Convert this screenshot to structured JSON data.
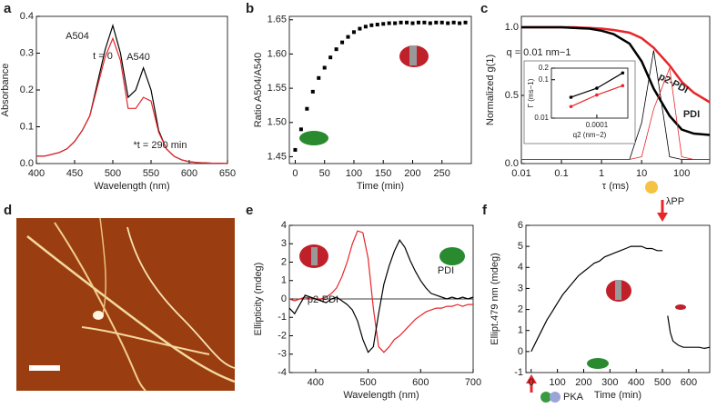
{
  "chart_data": [
    {
      "type": "line",
      "label": "a",
      "x_label": "Wavelength (nm)",
      "y_label": "Absorbance",
      "x": [
        400,
        410,
        420,
        430,
        440,
        450,
        460,
        470,
        480,
        490,
        500,
        510,
        520,
        530,
        540,
        550,
        560,
        570,
        580,
        590,
        600,
        610,
        620,
        630,
        640,
        650
      ],
      "series": [
        {
          "name": "t = 0",
          "color": "#000000",
          "values": [
            0.02,
            0.02,
            0.025,
            0.03,
            0.04,
            0.06,
            0.09,
            0.13,
            0.22,
            0.31,
            0.375,
            0.3,
            0.18,
            0.2,
            0.26,
            0.2,
            0.09,
            0.04,
            0.02,
            0.01,
            0.005,
            0.003,
            0.002,
            0.001,
            0.001,
            0
          ]
        },
        {
          "name": "*t = 290 min",
          "color": "#e8262a",
          "values": [
            0.02,
            0.02,
            0.025,
            0.03,
            0.04,
            0.06,
            0.09,
            0.13,
            0.21,
            0.29,
            0.34,
            0.28,
            0.15,
            0.15,
            0.18,
            0.17,
            0.085,
            0.04,
            0.02,
            0.01,
            0.005,
            0.003,
            0.002,
            0.001,
            0.001,
            0
          ]
        }
      ],
      "annotations": [
        {
          "text": "A504",
          "color": "#e8262a"
        },
        {
          "text": "A540",
          "color": "#e8262a"
        }
      ],
      "xlim": [
        400,
        650
      ],
      "xticks": [
        400,
        450,
        500,
        550,
        600,
        650
      ],
      "ylim": [
        0,
        0.4
      ],
      "yticks": [
        {
          "value": 0,
          "label": "0.0"
        },
        0.1,
        0.2,
        0.3,
        0.4
      ]
    },
    {
      "type": "scatter",
      "label": "b",
      "x_label": "Time (min)",
      "y_label": "Ratio A504/A540",
      "x": [
        0,
        10,
        20,
        30,
        40,
        50,
        60,
        70,
        80,
        90,
        100,
        110,
        120,
        130,
        140,
        150,
        160,
        170,
        180,
        190,
        200,
        210,
        220,
        230,
        240,
        250,
        260,
        270,
        280,
        290
      ],
      "series": [
        {
          "color": "#000000",
          "values": [
            1.46,
            1.49,
            1.52,
            1.545,
            1.565,
            1.58,
            1.595,
            1.607,
            1.617,
            1.625,
            1.632,
            1.637,
            1.64,
            1.642,
            1.643,
            1.644,
            1.645,
            1.645,
            1.646,
            1.646,
            1.645,
            1.646,
            1.646,
            1.645,
            1.646,
            1.646,
            1.645,
            1.646,
            1.645,
            1.646
          ]
        }
      ],
      "xlim": [
        -10,
        300
      ],
      "xticks": [
        0,
        50,
        100,
        150,
        200,
        250
      ],
      "ylim": [
        1.44,
        1.655
      ],
      "yticks": [
        1.45,
        {
          "value": 1.5,
          "label": "1.50"
        },
        1.55,
        {
          "value": 1.6,
          "label": "1.60"
        },
        1.65
      ]
    },
    {
      "type": "line",
      "label": "c",
      "x_label": "τ (ms)",
      "y_label": "Normalized g(1)",
      "xlog": true,
      "x": [
        0.01,
        0.02,
        0.05,
        0.1,
        0.2,
        0.5,
        1,
        2,
        5,
        10,
        20,
        50,
        100,
        200,
        500
      ],
      "series": [
        {
          "name": "p2-PDI",
          "color": "#e8262a",
          "line_width": 2.5,
          "values": [
            1,
            1,
            1,
            1,
            1,
            0.995,
            0.99,
            0.98,
            0.96,
            0.92,
            0.85,
            0.72,
            0.6,
            0.52,
            0.45
          ]
        },
        {
          "name": "PDI",
          "color": "#000000",
          "line_width": 2.5,
          "values": [
            1,
            1,
            1,
            1,
            0.995,
            0.99,
            0.975,
            0.95,
            0.88,
            0.75,
            0.55,
            0.35,
            0.25,
            0.22,
            0.21
          ]
        },
        {
          "color": "#000000",
          "line_width": 0.8,
          "values": [
            0.03,
            0.03,
            0.03,
            0.03,
            0.03,
            0.03,
            0.03,
            0.03,
            0.03,
            0.3,
            0.83,
            0.05,
            0.03,
            0.03,
            0.03
          ]
        },
        {
          "color": "#e8262a",
          "line_width": 0.8,
          "values": [
            0.03,
            0.03,
            0.03,
            0.03,
            0.03,
            0.03,
            0.03,
            0.03,
            0.03,
            0.05,
            0.4,
            0.7,
            0.05,
            0.03,
            0.03
          ]
        }
      ],
      "annotations": [
        {
          "text": "q = 0.01 nm−1",
          "color": "#000000"
        }
      ],
      "xlim": [
        0.01,
        500
      ],
      "xticks": [
        0.01,
        0.1,
        1,
        10,
        100
      ],
      "ylim": [
        0,
        1.08
      ],
      "yticks": [
        {
          "value": 0,
          "label": "0.0"
        },
        0.5,
        {
          "value": 1,
          "label": "1.0"
        }
      ]
    },
    {
      "type": "line",
      "x_label": "q2 (nm−2)",
      "y_label": "Γ (ms−1)",
      "xlog": true,
      "ylog": true,
      "markers": true,
      "x": [
        4e-05,
        0.0001,
        0.00025
      ],
      "series": [
        {
          "color": "#000000",
          "values": [
            0.035,
            0.06,
            0.15
          ]
        },
        {
          "color": "#e8262a",
          "values": [
            0.02,
            0.04,
            0.07
          ]
        }
      ],
      "xlim": [
        2e-05,
        0.0003
      ],
      "xticks": [
        0.0001
      ],
      "ylim": [
        0.01,
        0.2
      ],
      "yticks": [
        0.01,
        0.1,
        0.2
      ]
    },
    {
      "type": "image",
      "label": "d"
    },
    {
      "type": "line",
      "label": "e",
      "x_label": "Wavelength (nm)",
      "y_label": "Ellipticity (mdeg)",
      "zero_line": true,
      "x": [
        350,
        360,
        370,
        380,
        390,
        400,
        410,
        420,
        430,
        440,
        450,
        460,
        470,
        480,
        490,
        500,
        510,
        520,
        530,
        540,
        550,
        560,
        570,
        580,
        590,
        600,
        610,
        620,
        630,
        640,
        650,
        660,
        670,
        680,
        690,
        700
      ],
      "series": [
        {
          "name": "p2-PDI",
          "color": "#e8262a",
          "values": [
            0,
            -0.1,
            0,
            0.1,
            0,
            0,
            0,
            0.1,
            0.3,
            0.6,
            1.2,
            2,
            3,
            3.7,
            3.6,
            2.2,
            -0.5,
            -2.6,
            -2.9,
            -2.6,
            -2.2,
            -2,
            -1.7,
            -1.4,
            -1.1,
            -0.9,
            -0.7,
            -0.6,
            -0.5,
            -0.5,
            -0.4,
            -0.4,
            -0.3,
            -0.4,
            -0.3,
            -0.3
          ]
        },
        {
          "name": "PDI",
          "color": "#000000",
          "values": [
            -0.5,
            -0.8,
            -0.3,
            0.2,
            0.1,
            0,
            -0.1,
            -0.2,
            0,
            0.1,
            -0.1,
            -0.3,
            -0.6,
            -1.2,
            -2.2,
            -2.9,
            -2.6,
            -0.8,
            0.8,
            1.8,
            2.6,
            3.2,
            2.8,
            2.1,
            1.5,
            1,
            0.6,
            0.3,
            0.2,
            0.1,
            0,
            0.1,
            0,
            0.1,
            0,
            0.1
          ]
        }
      ],
      "xlim": [
        350,
        700
      ],
      "xticks": [
        400,
        500,
        600,
        700
      ],
      "ylim": [
        -4,
        4
      ],
      "yticks": [
        -4,
        -3,
        -2,
        -1,
        0,
        1,
        2,
        3,
        4
      ]
    },
    {
      "type": "line",
      "label": "f",
      "x_label": "Time (min)",
      "y_label": "Ellipt.479 nm (mdeg)",
      "x": [
        0,
        20,
        40,
        60,
        80,
        100,
        120,
        140,
        160,
        180,
        200,
        220,
        240,
        260,
        280,
        300,
        320,
        340,
        360,
        380,
        400,
        420,
        440,
        460,
        480,
        500,
        505,
        520,
        530,
        540,
        560,
        580,
        600,
        620,
        640,
        660,
        680
      ],
      "series": [
        {
          "color": "#000000",
          "values": [
            0,
            0.5,
            1,
            1.5,
            1.9,
            2.3,
            2.7,
            3,
            3.3,
            3.6,
            3.8,
            4,
            4.2,
            4.3,
            4.5,
            4.6,
            4.7,
            4.8,
            4.9,
            5,
            5,
            5,
            4.9,
            4.9,
            4.8,
            4.8,
            null,
            1.7,
            0.9,
            0.5,
            0.3,
            0.2,
            0.2,
            0.2,
            0.2,
            0.15,
            0.2
          ]
        }
      ],
      "annotations": [
        {
          "text": "λPP",
          "color": "#333366"
        },
        {
          "text": "PKA",
          "color": "#333366"
        }
      ],
      "xlim": [
        -20,
        680
      ],
      "xticks": [
        0,
        100,
        200,
        300,
        400,
        500,
        600
      ],
      "ylim": [
        -1,
        6
      ],
      "yticks": [
        -1,
        0,
        1,
        2,
        3,
        4,
        5,
        6
      ]
    }
  ]
}
